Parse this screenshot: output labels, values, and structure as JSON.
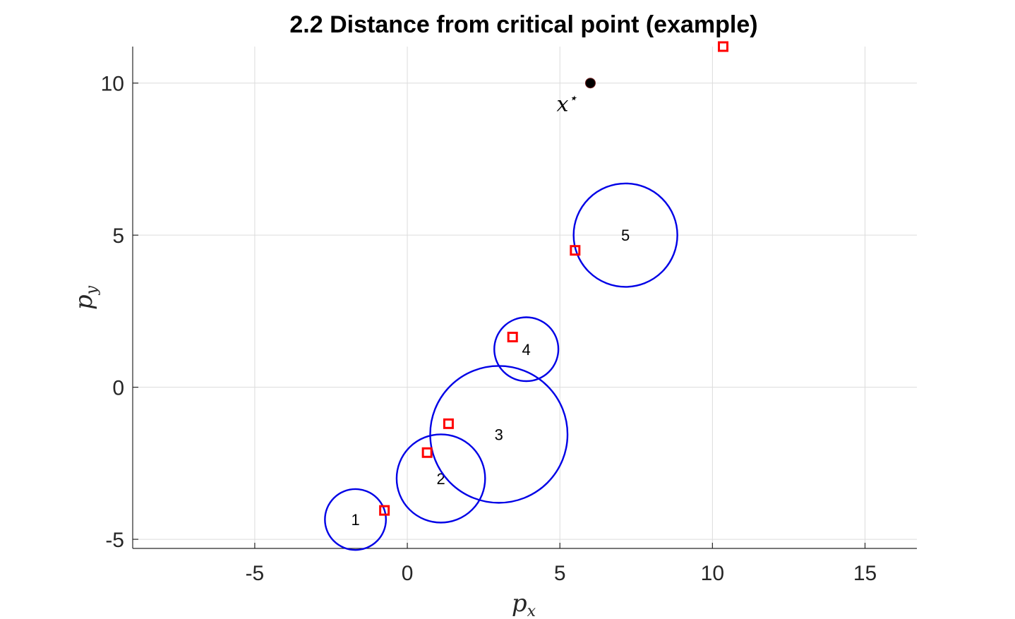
{
  "chart_data": {
    "type": "scatter",
    "title": "2.2 Distance from critical point (example)",
    "xlabel": "p",
    "xlabel_sub": "x",
    "ylabel": "p",
    "ylabel_sub": "y",
    "xlim": [
      -9,
      16.7
    ],
    "ylim": [
      -5.3,
      11.2
    ],
    "xticks": [
      -5,
      0,
      5,
      10,
      15
    ],
    "yticks": [
      -5,
      0,
      5,
      10
    ],
    "xtick_labels": [
      "-5",
      "0",
      "5",
      "10",
      "15"
    ],
    "ytick_labels": [
      "-5",
      "0",
      "5",
      "10"
    ],
    "grid": true,
    "critical_point": {
      "x": 6.0,
      "y": 10.0,
      "label": "x",
      "label_sup": "⋆",
      "color": "#000000"
    },
    "circles": [
      {
        "label": "1",
        "cx": -1.7,
        "cy": -4.35,
        "r": 1.0
      },
      {
        "label": "2",
        "cx": 1.1,
        "cy": -3.0,
        "r": 1.45
      },
      {
        "label": "3",
        "cx": 3.0,
        "cy": -1.55,
        "r": 2.25
      },
      {
        "label": "4",
        "cx": 3.9,
        "cy": 1.25,
        "r": 1.05
      },
      {
        "label": "5",
        "cx": 7.15,
        "cy": 5.0,
        "r": 1.7
      }
    ],
    "markers": [
      {
        "x": -0.75,
        "y": -4.05
      },
      {
        "x": 0.65,
        "y": -2.15
      },
      {
        "x": 1.35,
        "y": -1.2
      },
      {
        "x": 3.45,
        "y": 1.65
      },
      {
        "x": 5.5,
        "y": 4.5
      },
      {
        "x": 10.35,
        "y": 11.2
      }
    ],
    "colors": {
      "circle": "#0000e6",
      "marker": "#ff0000",
      "point": "#000000"
    }
  }
}
